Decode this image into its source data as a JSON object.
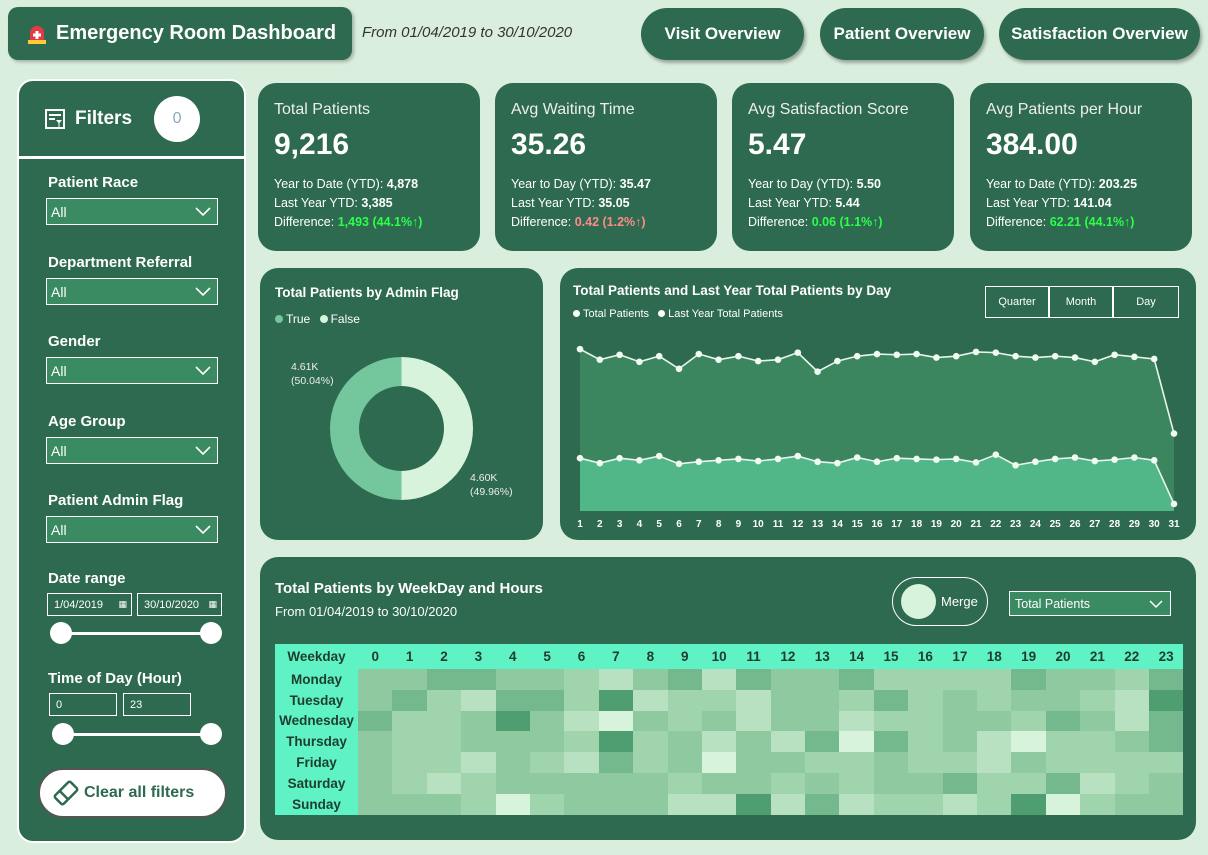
{
  "header": {
    "title": "Emergency Room Dashboard",
    "date_range": "From 01/04/2019 to 30/10/2020",
    "nav": [
      "Visit Overview",
      "Patient Overview",
      "Satisfaction Overview"
    ]
  },
  "sidebar": {
    "title": "Filters",
    "count": "0",
    "filters": [
      {
        "label": "Patient Race",
        "value": "All"
      },
      {
        "label": "Department Referral",
        "value": "All"
      },
      {
        "label": "Gender",
        "value": "All"
      },
      {
        "label": "Age Group",
        "value": "All"
      },
      {
        "label": "Patient Admin Flag",
        "value": "All"
      }
    ],
    "date_range": {
      "label": "Date range",
      "start": "1/04/2019",
      "end": "30/10/2020"
    },
    "time_of_day": {
      "label": "Time of Day (Hour)",
      "min": "0",
      "max": "23"
    },
    "clear_label": "Clear all filters"
  },
  "kpis": [
    {
      "title": "Total Patients",
      "value": "9,216",
      "l1": "Year to Date (YTD):",
      "v1": "4,878",
      "l2": "Last Year YTD:",
      "v2": "3,385",
      "l3": "Difference:",
      "v3": "1,493 (44.1%↑)",
      "trend": "pos"
    },
    {
      "title": "Avg Waiting Time",
      "value": "35.26",
      "l1": "Year to Day (YTD):",
      "v1": "35.47",
      "l2": "Last Year YTD:",
      "v2": "35.05",
      "l3": "Difference:",
      "v3": "0.42 (1.2%↑)",
      "trend": "neg"
    },
    {
      "title": "Avg Satisfaction Score",
      "value": "5.47",
      "l1": "Year to Day (YTD):",
      "v1": "5.50",
      "l2": "Last Year YTD:",
      "v2": "5.44",
      "l3": "Difference:",
      "v3": "0.06 (1.1%↑)",
      "trend": "pos"
    },
    {
      "title": "Avg Patients per Hour",
      "value": "384.00",
      "l1": "Year to Date (YTD):",
      "v1": "203.25",
      "l2": "Last Year YTD:",
      "v2": "141.04",
      "l3": "Difference:",
      "v3": "62.21 (44.1%↑)",
      "trend": "pos"
    }
  ],
  "donut": {
    "title": "Total Patients by Admin Flag",
    "legend": [
      "True",
      "False"
    ],
    "label_true": "4.61K",
    "pct_true": "(50.04%)",
    "label_false": "4.60K",
    "pct_false": "(49.96%)",
    "colors": {
      "true": "#74c69d",
      "false": "#d8f3dc"
    }
  },
  "line": {
    "title": "Total Patients and Last Year Total Patients by Day",
    "legend": [
      "Total Patients",
      "Last Year Total Patients"
    ],
    "toggles": [
      "Quarter",
      "Month",
      "Day"
    ]
  },
  "heatmap": {
    "title": "Total Patients by WeekDay and Hours",
    "subtitle": "From 01/04/2019 to 30/10/2020",
    "merge_label": "Merge",
    "measure": "Total Patients",
    "corner": "Weekday",
    "days": [
      "Monday",
      "Tuesday",
      "Wednesday",
      "Thursday",
      "Friday",
      "Saturday",
      "Sunday"
    ],
    "hours": [
      "0",
      "1",
      "2",
      "3",
      "4",
      "5",
      "6",
      "7",
      "8",
      "9",
      "10",
      "11",
      "12",
      "13",
      "14",
      "15",
      "16",
      "17",
      "18",
      "19",
      "20",
      "21",
      "22",
      "23"
    ],
    "levels": [
      [
        3,
        3,
        4,
        4,
        3,
        3,
        2,
        1,
        3,
        4,
        1,
        4,
        3,
        3,
        4,
        2,
        2,
        2,
        2,
        4,
        3,
        3,
        2,
        4
      ],
      [
        3,
        4,
        2,
        1,
        4,
        4,
        2,
        5,
        1,
        2,
        2,
        1,
        3,
        3,
        2,
        4,
        2,
        3,
        2,
        3,
        3,
        2,
        1,
        5
      ],
      [
        4,
        2,
        2,
        3,
        5,
        3,
        1,
        0,
        3,
        2,
        3,
        1,
        3,
        3,
        1,
        2,
        2,
        3,
        3,
        2,
        4,
        3,
        1,
        4
      ],
      [
        3,
        2,
        2,
        3,
        3,
        3,
        2,
        5,
        2,
        3,
        1,
        3,
        1,
        4,
        0,
        4,
        2,
        3,
        1,
        0,
        2,
        2,
        3,
        4
      ],
      [
        3,
        2,
        2,
        1,
        3,
        2,
        1,
        4,
        2,
        3,
        0,
        3,
        3,
        2,
        2,
        3,
        2,
        2,
        1,
        3,
        2,
        2,
        2,
        2
      ],
      [
        3,
        2,
        1,
        2,
        3,
        3,
        3,
        3,
        3,
        2,
        3,
        3,
        2,
        3,
        2,
        3,
        3,
        4,
        2,
        2,
        4,
        1,
        2,
        3
      ],
      [
        3,
        3,
        3,
        2,
        0,
        2,
        3,
        3,
        3,
        1,
        1,
        5,
        1,
        4,
        1,
        2,
        2,
        1,
        2,
        5,
        0,
        2,
        3,
        3
      ]
    ]
  },
  "chart_data": {
    "type": "line",
    "x": [
      1,
      2,
      3,
      4,
      5,
      6,
      7,
      8,
      9,
      10,
      11,
      12,
      13,
      14,
      15,
      16,
      17,
      18,
      19,
      20,
      21,
      22,
      23,
      24,
      25,
      26,
      27,
      28,
      29,
      30,
      31
    ],
    "series": [
      {
        "name": "Total Patients",
        "values": [
          330,
          315,
          322,
          312,
          320,
          302,
          323,
          315,
          320,
          313,
          315,
          325,
          298,
          313,
          320,
          323,
          322,
          323,
          318,
          320,
          326,
          325,
          320,
          318,
          320,
          318,
          312,
          322,
          319,
          316,
          210
        ],
        "color": "#3d8a60"
      },
      {
        "name": "Last Year Total Patients",
        "values": [
          175,
          168,
          175,
          172,
          178,
          167,
          170,
          172,
          174,
          171,
          174,
          178,
          170,
          168,
          176,
          170,
          175,
          174,
          173,
          174,
          169,
          180,
          165,
          170,
          174,
          176,
          171,
          173,
          176,
          172,
          110
        ],
        "color": "#52b788"
      }
    ],
    "ylim": [
      100,
      360
    ]
  }
}
